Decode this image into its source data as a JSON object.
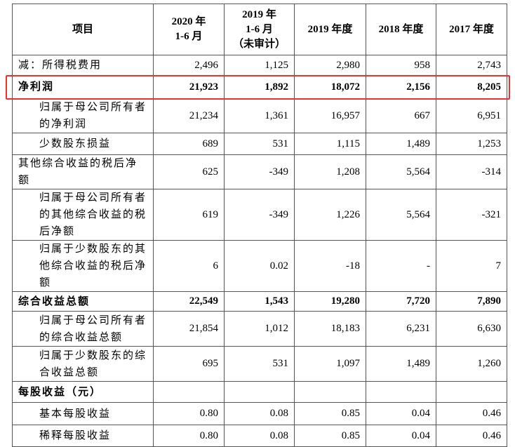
{
  "table": {
    "header": [
      "项目",
      "2020 年\n1-6 月",
      "2019 年\n1-6 月\n（未审计）",
      "2019 年度",
      "2018 年度",
      "2017 年度"
    ],
    "rows": [
      {
        "label": "减：所得税费用",
        "cells": [
          "2,496",
          "1,125",
          "2,980",
          "958",
          "2,743"
        ]
      },
      {
        "label": "净利润",
        "cells": [
          "21,923",
          "1,892",
          "18,072",
          "2,156",
          "8,205"
        ]
      },
      {
        "label": "归属于母公司所有者的净利润",
        "cells": [
          "21,234",
          "1,361",
          "16,957",
          "667",
          "6,951"
        ]
      },
      {
        "label": "少数股东损益",
        "cells": [
          "689",
          "531",
          "1,115",
          "1,489",
          "1,253"
        ]
      },
      {
        "label": "其他综合收益的税后净额",
        "cells": [
          "625",
          "-349",
          "1,208",
          "5,564",
          "-314"
        ]
      },
      {
        "label": "归属于母公司所有者的其他综合收益的税后净额",
        "cells": [
          "619",
          "-349",
          "1,226",
          "5,564",
          "-321"
        ]
      },
      {
        "label": "归属于少数股东的其他综合收益的税后净额",
        "cells": [
          "6",
          "0.02",
          "-18",
          "-",
          "7"
        ]
      },
      {
        "label": "综合收益总额",
        "cells": [
          "22,549",
          "1,543",
          "19,280",
          "7,720",
          "7,890"
        ]
      },
      {
        "label": "归属于母公司所有者的综合收益总额",
        "cells": [
          "21,854",
          "1,012",
          "18,183",
          "6,231",
          "6,630"
        ]
      },
      {
        "label": "归属于少数股东的综合收益总额",
        "cells": [
          "695",
          "531",
          "1,097",
          "1,489",
          "1,260"
        ]
      },
      {
        "label": "每股收益（元）",
        "cells": []
      },
      {
        "label": "基本每股收益",
        "cells": [
          "0.80",
          "0.08",
          "0.85",
          "0.04",
          "0.46"
        ]
      },
      {
        "label": "稀释每股收益",
        "cells": [
          "0.80",
          "0.08",
          "0.85",
          "0.04",
          "0.46"
        ]
      }
    ]
  }
}
